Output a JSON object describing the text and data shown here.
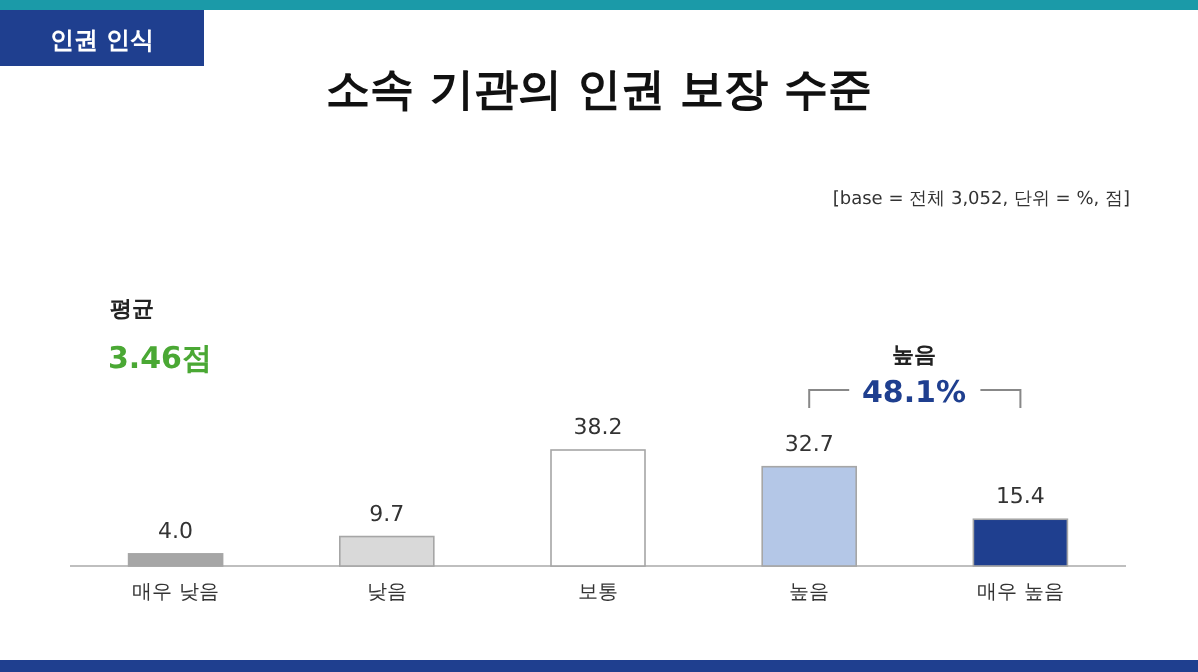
{
  "chart_data": {
    "type": "bar",
    "title": "소속 기관의 인권 보장 수준",
    "categories": [
      "매우 낮음",
      "낮음",
      "보통",
      "높음",
      "매우 높음"
    ],
    "values": [
      4.0,
      9.7,
      38.2,
      32.7,
      15.4
    ],
    "colors": [
      "#a6a6a6",
      "#d9d9d9",
      "#ffffff",
      "#b4c7e7",
      "#1f3f8f"
    ],
    "value_labels": [
      "4.0",
      "9.7",
      "38.2",
      "32.7",
      "15.4"
    ],
    "annotations": [
      "인권 인식",
      "[base = 전체 3,052, 단위 = %, 점]",
      "평균",
      "3.46점",
      "높음",
      "48.1%"
    ]
  }
}
